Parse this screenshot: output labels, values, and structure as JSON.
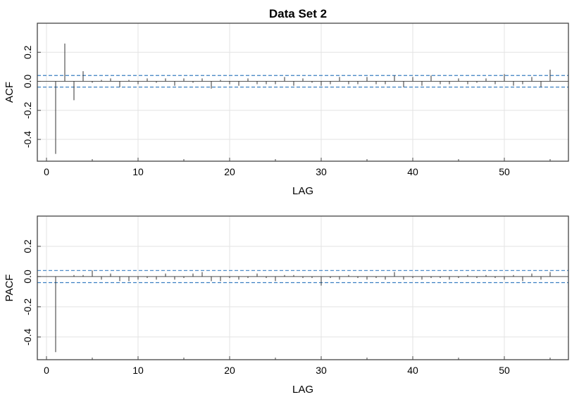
{
  "chart_data": [
    {
      "type": "bar",
      "title": "Data Set 2",
      "xlabel": "LAG",
      "ylabel": "ACF",
      "xlim": [
        -1,
        57
      ],
      "ylim": [
        -0.55,
        0.4
      ],
      "xticks": [
        0,
        10,
        20,
        30,
        40,
        50
      ],
      "yticks": [
        -0.4,
        -0.2,
        0.0,
        0.2
      ],
      "ytick_labels": [
        "-0.4",
        "-0.2",
        "0.0",
        "0.2"
      ],
      "grid": true,
      "colors": {
        "bars": "#333333",
        "bound": "#3a7fc1",
        "zero": "#555555",
        "grid": "#e3e3e3"
      },
      "confidence_bound": 0.04,
      "lags": [
        1,
        2,
        3,
        4,
        5,
        6,
        7,
        8,
        9,
        10,
        11,
        12,
        13,
        14,
        15,
        16,
        17,
        18,
        19,
        20,
        21,
        22,
        23,
        24,
        25,
        26,
        27,
        28,
        29,
        30,
        31,
        32,
        33,
        34,
        35,
        36,
        37,
        38,
        39,
        40,
        41,
        42,
        43,
        44,
        45,
        46,
        47,
        48,
        49,
        50,
        51,
        52,
        53,
        54,
        55
      ],
      "values": [
        -0.5,
        0.26,
        -0.13,
        0.07,
        -0.01,
        0.01,
        0.02,
        -0.04,
        0.01,
        -0.02,
        0.02,
        -0.01,
        0.02,
        -0.03,
        0.02,
        -0.01,
        0.02,
        -0.05,
        0.01,
        -0.02,
        -0.03,
        0.02,
        -0.02,
        -0.02,
        -0.02,
        0.03,
        -0.03,
        0.02,
        -0.01,
        -0.03,
        -0.02,
        0.03,
        -0.02,
        -0.02,
        0.03,
        -0.02,
        -0.02,
        0.04,
        -0.04,
        0.03,
        -0.03,
        0.04,
        -0.02,
        -0.02,
        0.02,
        -0.02,
        -0.01,
        0.02,
        -0.02,
        0.05,
        -0.03,
        -0.02,
        0.03,
        -0.04,
        0.08
      ]
    },
    {
      "type": "bar",
      "title": "",
      "xlabel": "LAG",
      "ylabel": "PACF",
      "xlim": [
        -1,
        57
      ],
      "ylim": [
        -0.55,
        0.4
      ],
      "xticks": [
        0,
        10,
        20,
        30,
        40,
        50
      ],
      "yticks": [
        -0.4,
        -0.2,
        0.0,
        0.2
      ],
      "ytick_labels": [
        "-0.4",
        "-0.2",
        "0.0",
        "0.2"
      ],
      "grid": true,
      "colors": {
        "bars": "#333333",
        "bound": "#3a7fc1",
        "zero": "#555555",
        "grid": "#e3e3e3"
      },
      "confidence_bound": 0.04,
      "lags": [
        1,
        2,
        3,
        4,
        5,
        6,
        7,
        8,
        9,
        10,
        11,
        12,
        13,
        14,
        15,
        16,
        17,
        18,
        19,
        20,
        21,
        22,
        23,
        24,
        25,
        26,
        27,
        28,
        29,
        30,
        31,
        32,
        33,
        34,
        35,
        36,
        37,
        38,
        39,
        40,
        41,
        42,
        43,
        44,
        45,
        46,
        47,
        48,
        49,
        50,
        51,
        52,
        53,
        54,
        55
      ],
      "values": [
        -0.5,
        0.0,
        0.01,
        0.01,
        0.04,
        -0.02,
        0.02,
        -0.03,
        -0.03,
        -0.02,
        -0.01,
        -0.02,
        0.02,
        -0.02,
        -0.01,
        0.02,
        0.03,
        -0.03,
        -0.03,
        -0.01,
        -0.02,
        -0.01,
        0.02,
        -0.01,
        -0.03,
        0.01,
        0.01,
        -0.01,
        -0.01,
        -0.06,
        -0.01,
        -0.02,
        0.01,
        -0.01,
        -0.02,
        -0.01,
        -0.02,
        0.03,
        -0.02,
        -0.01,
        -0.02,
        -0.01,
        -0.01,
        -0.02,
        -0.01,
        0.01,
        -0.01,
        0.01,
        -0.01,
        -0.02,
        0.01,
        -0.03,
        0.02,
        -0.02,
        0.03
      ]
    }
  ]
}
